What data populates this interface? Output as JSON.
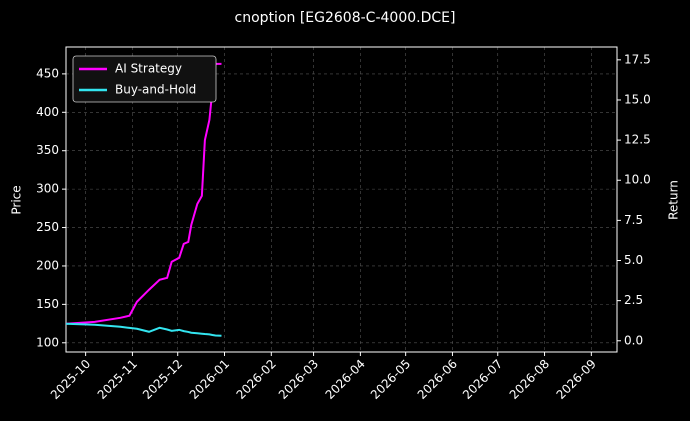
{
  "chart_data": {
    "type": "line",
    "title": "cnoption [EG2608-C-4000.DCE]",
    "ylabel": "Price",
    "y2label": "Return",
    "x": [
      "2025-09-18",
      "2025-10-07",
      "2025-10-24",
      "2025-10-30",
      "2025-11-04",
      "2025-11-12",
      "2025-11-19",
      "2025-11-24",
      "2025-11-27",
      "2025-12-02",
      "2025-12-05",
      "2025-12-08",
      "2025-12-10",
      "2025-12-14",
      "2025-12-17",
      "2025-12-19",
      "2025-12-22",
      "2025-12-24",
      "2025-12-26",
      "2025-12-30"
    ],
    "series": [
      {
        "name": "AI Strategy",
        "color": "#ff00ff",
        "axis": "y2",
        "values": [
          1.06,
          1.18,
          1.43,
          1.56,
          2.43,
          3.18,
          3.8,
          3.92,
          4.92,
          5.17,
          6.04,
          6.16,
          7.22,
          8.53,
          9.03,
          12.5,
          13.76,
          15.63,
          17.25,
          17.25
        ]
      },
      {
        "name": "Buy-and-Hold",
        "color": "#33e5f0",
        "axis": "y2",
        "values": [
          1.06,
          1.0,
          0.87,
          0.8,
          0.75,
          0.56,
          0.81,
          0.7,
          0.62,
          0.68,
          0.6,
          0.55,
          0.5,
          0.47,
          0.44,
          0.42,
          0.4,
          0.36,
          0.33,
          0.31
        ]
      }
    ],
    "xlim": [
      "2025-09-18",
      "2026-09-18"
    ],
    "xticks": [
      "2025-10",
      "2025-11",
      "2025-12",
      "2026-01",
      "2026-02",
      "2026-03",
      "2026-04",
      "2026-05",
      "2026-06",
      "2026-07",
      "2026-08",
      "2026-09"
    ],
    "ylim": [
      88,
      485
    ],
    "yticks": [
      100,
      150,
      200,
      250,
      300,
      350,
      400,
      450
    ],
    "y2lim": [
      -0.7,
      18.3
    ],
    "y2ticks": [
      {
        "value": 0,
        "label": "0.0"
      },
      2.5,
      {
        "value": 5,
        "label": "5.0"
      },
      7.5,
      {
        "value": 10,
        "label": "10.0"
      },
      12.5,
      {
        "value": 15,
        "label": "15.0"
      },
      17.5
    ],
    "grid": true,
    "legend": "upper left"
  }
}
